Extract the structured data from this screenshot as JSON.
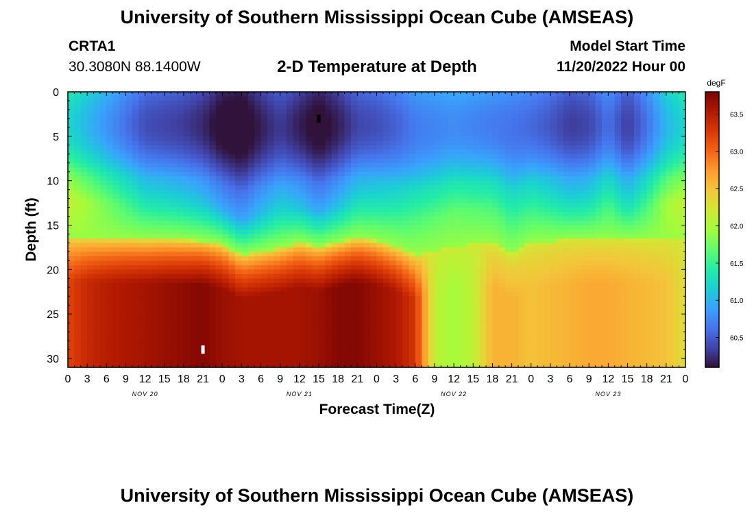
{
  "page": {
    "title": "University of Southern Mississippi Ocean Cube (AMSEAS)",
    "footer_title": "University of Southern Mississippi Ocean Cube (AMSEAS)",
    "station": "CRTA1",
    "coords": "30.3080N  88.1400W",
    "subtitle": "2-D Temperature at Depth",
    "model_start_label": "Model Start Time",
    "model_start_value": "11/20/2022 Hour 00"
  },
  "chart_data": {
    "type": "heatmap",
    "title": "2-D Temperature at Depth",
    "xlabel": "Forecast Time(Z)",
    "ylabel": "Depth (ft)",
    "colorbar_unit": "degF",
    "colorbar_ticks": [
      60.5,
      61.0,
      61.5,
      62.0,
      62.5,
      63.0,
      63.5
    ],
    "color_range": [
      60.1,
      63.8
    ],
    "colormap": [
      "#30123b",
      "#4145ab",
      "#4675ed",
      "#39a2fc",
      "#1bcfd4",
      "#24eca6",
      "#61fc6c",
      "#a4fc3b",
      "#d1e834",
      "#f3c63a",
      "#fe9b2d",
      "#f36315",
      "#d93806",
      "#b11901",
      "#7a0403"
    ],
    "x_range_hours": [
      0,
      96
    ],
    "x_tick_hours": [
      0,
      3,
      6,
      9,
      12,
      15,
      18,
      21,
      24,
      27,
      30,
      33,
      36,
      39,
      42,
      45,
      48,
      51,
      54,
      57,
      60,
      63,
      66,
      69,
      72,
      75,
      78,
      81,
      84,
      87,
      90,
      93,
      96
    ],
    "x_tick_labels": [
      "0",
      "3",
      "6",
      "9",
      "12",
      "15",
      "18",
      "21",
      "0",
      "3",
      "6",
      "9",
      "12",
      "15",
      "18",
      "21",
      "0",
      "3",
      "6",
      "9",
      "12",
      "15",
      "18",
      "21",
      "0",
      "3",
      "6",
      "9",
      "12",
      "15",
      "18",
      "21",
      "0"
    ],
    "day_labels": [
      {
        "hour": 12,
        "text": "NOV 20"
      },
      {
        "hour": 36,
        "text": "NOV 21"
      },
      {
        "hour": 60,
        "text": "NOV 22"
      },
      {
        "hour": 84,
        "text": "NOV 23"
      }
    ],
    "y_range_ft": [
      0,
      31
    ],
    "y_ticks": [
      0,
      5,
      10,
      15,
      20,
      25,
      30
    ],
    "bottom_layer_temp": {
      "hours": [
        0,
        3,
        6,
        9,
        12,
        15,
        18,
        21,
        24,
        27,
        30,
        33,
        36,
        39,
        42,
        45,
        48,
        51,
        54,
        57,
        60,
        63,
        66,
        69,
        72,
        75,
        78,
        81,
        84,
        87,
        90,
        93,
        96
      ],
      "values": [
        63.2,
        63.4,
        63.5,
        63.55,
        63.6,
        63.65,
        63.7,
        63.75,
        63.65,
        63.6,
        63.6,
        63.6,
        63.6,
        63.65,
        63.75,
        63.75,
        63.65,
        63.55,
        63.3,
        62.1,
        61.95,
        62.1,
        62.6,
        62.6,
        62.5,
        62.55,
        62.6,
        62.65,
        62.65,
        62.6,
        62.55,
        62.5,
        62.3
      ]
    },
    "surface_layer_temp": {
      "hours": [
        0,
        3,
        6,
        9,
        12,
        15,
        18,
        21,
        24,
        27,
        30,
        33,
        36,
        39,
        42,
        45,
        48,
        51,
        54,
        57,
        60,
        63,
        66,
        69,
        72,
        75,
        78,
        81,
        84,
        87,
        90,
        93,
        96
      ],
      "values": [
        61.4,
        61.2,
        61.0,
        60.8,
        60.6,
        60.55,
        60.5,
        60.4,
        60.2,
        60.15,
        60.35,
        60.5,
        60.35,
        60.2,
        60.35,
        60.55,
        60.6,
        60.7,
        60.85,
        60.9,
        60.95,
        60.9,
        60.85,
        60.8,
        60.75,
        60.65,
        60.5,
        60.55,
        60.8,
        60.5,
        60.8,
        61.2,
        61.4
      ]
    },
    "thermocline_depth_ft": {
      "hours": [
        0,
        3,
        6,
        9,
        12,
        15,
        18,
        21,
        24,
        27,
        30,
        33,
        36,
        39,
        42,
        45,
        48,
        51,
        54,
        57,
        60,
        63,
        66,
        69,
        72,
        75,
        78,
        81,
        84,
        87,
        90,
        93,
        96
      ],
      "values": [
        16.3,
        16.4,
        16.5,
        16.5,
        16.6,
        16.6,
        16.7,
        16.8,
        17.2,
        18.4,
        18.0,
        17.6,
        17.0,
        17.5,
        17.0,
        16.5,
        16.8,
        17.5,
        18.4,
        18.0,
        17.5,
        17.2,
        17.0,
        18.5,
        17.0,
        16.8,
        16.6,
        16.6,
        16.6,
        16.6,
        16.6,
        16.6,
        16.6
      ]
    },
    "annotations": [
      {
        "kind": "min-marker",
        "hour": 39,
        "depth": 3
      },
      {
        "kind": "max-marker",
        "hour": 21,
        "depth": 29
      }
    ]
  }
}
